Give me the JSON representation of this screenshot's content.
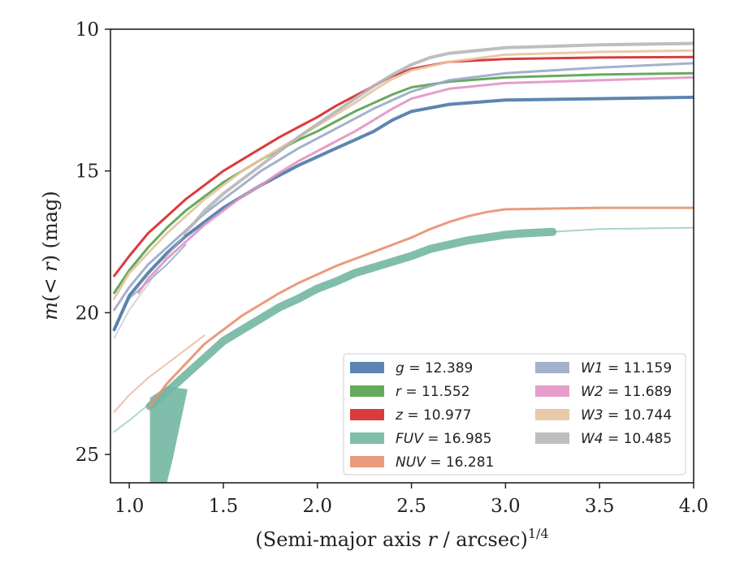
{
  "chart_data": {
    "type": "line",
    "xlabel_main": "(Semi-major axis ",
    "xlabel_var": "r",
    "xlabel_tail": " / arcsec)",
    "xlabel_sup": "1/4",
    "ylabel_main": "m",
    "ylabel_mid": "(< ",
    "ylabel_var": "r",
    "ylabel_tail": ") (mag)",
    "xlim": [
      0.9,
      4.0
    ],
    "ylim": [
      26,
      10
    ],
    "y_inverted": true,
    "grid": false,
    "legend_position": "lower-right",
    "xticks": [
      {
        "v": 1.0,
        "label": "1.0"
      },
      {
        "v": 1.5,
        "label": "1.5"
      },
      {
        "v": 2.0,
        "label": "2.0"
      },
      {
        "v": 2.5,
        "label": "2.5"
      },
      {
        "v": 3.0,
        "label": "3.0"
      },
      {
        "v": 3.5,
        "label": "3.5"
      },
      {
        "v": 4.0,
        "label": "4.0"
      }
    ],
    "yticks": [
      {
        "v": 10,
        "label": "10"
      },
      {
        "v": 15,
        "label": "15"
      },
      {
        "v": 20,
        "label": "20"
      },
      {
        "v": 25,
        "label": "25"
      }
    ],
    "series": [
      {
        "name": "g",
        "value": "12.389",
        "color": "#4c78a8",
        "width": 4,
        "points": [
          [
            0.92,
            20.6
          ],
          [
            1.0,
            19.4
          ],
          [
            1.1,
            18.6
          ],
          [
            1.2,
            17.9
          ],
          [
            1.3,
            17.3
          ],
          [
            1.4,
            16.8
          ],
          [
            1.5,
            16.3
          ],
          [
            1.6,
            15.9
          ],
          [
            1.7,
            15.5
          ],
          [
            1.8,
            15.15
          ],
          [
            1.9,
            14.8
          ],
          [
            2.0,
            14.5
          ],
          [
            2.1,
            14.2
          ],
          [
            2.2,
            13.9
          ],
          [
            2.3,
            13.6
          ],
          [
            2.4,
            13.2
          ],
          [
            2.5,
            12.9
          ],
          [
            2.7,
            12.65
          ],
          [
            3.0,
            12.5
          ],
          [
            3.5,
            12.45
          ],
          [
            4.0,
            12.4
          ]
        ],
        "faint_start": [
          [
            0.92,
            20.6
          ],
          [
            1.0,
            19.5
          ],
          [
            1.1,
            18.9
          ],
          [
            1.2,
            18.3
          ],
          [
            1.3,
            17.6
          ]
        ]
      },
      {
        "name": "r",
        "value": "11.552",
        "color": "#54a24b",
        "width": 3,
        "points": [
          [
            0.92,
            19.3
          ],
          [
            1.0,
            18.5
          ],
          [
            1.1,
            17.7
          ],
          [
            1.2,
            17.0
          ],
          [
            1.3,
            16.4
          ],
          [
            1.4,
            15.9
          ],
          [
            1.5,
            15.4
          ],
          [
            1.6,
            15.0
          ],
          [
            1.7,
            14.6
          ],
          [
            1.8,
            14.25
          ],
          [
            1.9,
            13.9
          ],
          [
            2.0,
            13.6
          ],
          [
            2.1,
            13.25
          ],
          [
            2.2,
            12.9
          ],
          [
            2.3,
            12.6
          ],
          [
            2.4,
            12.3
          ],
          [
            2.5,
            12.05
          ],
          [
            2.7,
            11.85
          ],
          [
            3.0,
            11.7
          ],
          [
            3.5,
            11.6
          ],
          [
            4.0,
            11.55
          ]
        ]
      },
      {
        "name": "z",
        "value": "10.977",
        "color": "#d62728",
        "width": 3,
        "points": [
          [
            0.92,
            18.7
          ],
          [
            1.0,
            18.0
          ],
          [
            1.1,
            17.2
          ],
          [
            1.2,
            16.6
          ],
          [
            1.3,
            16.0
          ],
          [
            1.4,
            15.5
          ],
          [
            1.5,
            15.0
          ],
          [
            1.6,
            14.6
          ],
          [
            1.7,
            14.2
          ],
          [
            1.8,
            13.8
          ],
          [
            1.9,
            13.45
          ],
          [
            2.0,
            13.1
          ],
          [
            2.1,
            12.7
          ],
          [
            2.2,
            12.35
          ],
          [
            2.3,
            12.0
          ],
          [
            2.4,
            11.65
          ],
          [
            2.5,
            11.4
          ],
          [
            2.7,
            11.15
          ],
          [
            3.0,
            11.05
          ],
          [
            3.5,
            11.0
          ],
          [
            4.0,
            10.98
          ]
        ]
      },
      {
        "name": "FUV",
        "value": "16.985",
        "color": "#72b7a2",
        "width": 10,
        "points": [
          [
            1.11,
            23.3
          ],
          [
            1.2,
            22.8
          ],
          [
            1.3,
            22.2
          ],
          [
            1.4,
            21.6
          ],
          [
            1.5,
            21.0
          ],
          [
            1.6,
            20.6
          ],
          [
            1.7,
            20.2
          ],
          [
            1.8,
            19.8
          ],
          [
            1.9,
            19.5
          ],
          [
            2.0,
            19.15
          ],
          [
            2.1,
            18.9
          ],
          [
            2.2,
            18.6
          ],
          [
            2.3,
            18.4
          ],
          [
            2.4,
            18.2
          ],
          [
            2.5,
            18.0
          ],
          [
            2.6,
            17.75
          ],
          [
            2.7,
            17.6
          ],
          [
            2.8,
            17.45
          ],
          [
            2.9,
            17.35
          ],
          [
            3.0,
            17.25
          ],
          [
            3.1,
            17.2
          ],
          [
            3.25,
            17.15
          ]
        ],
        "faint_start": [
          [
            0.92,
            24.2
          ],
          [
            1.0,
            23.8
          ],
          [
            1.11,
            23.2
          ]
        ],
        "faint_end": [
          [
            3.25,
            17.15
          ],
          [
            3.5,
            17.05
          ],
          [
            4.0,
            17.0
          ]
        ],
        "tail": [
          [
            1.11,
            23.0
          ],
          [
            1.2,
            22.6
          ],
          [
            1.31,
            22.7
          ],
          [
            1.23,
            25.2
          ],
          [
            1.2,
            26.0
          ],
          [
            1.11,
            26.0
          ]
        ]
      },
      {
        "name": "NUV",
        "value": "16.281",
        "color": "#e8906f",
        "width": 3,
        "points": [
          [
            1.11,
            23.3
          ],
          [
            1.2,
            22.5
          ],
          [
            1.3,
            21.8
          ],
          [
            1.4,
            21.1
          ],
          [
            1.5,
            20.6
          ],
          [
            1.6,
            20.1
          ],
          [
            1.7,
            19.7
          ],
          [
            1.8,
            19.3
          ],
          [
            1.9,
            18.95
          ],
          [
            2.0,
            18.65
          ],
          [
            2.1,
            18.35
          ],
          [
            2.2,
            18.1
          ],
          [
            2.3,
            17.85
          ],
          [
            2.4,
            17.6
          ],
          [
            2.5,
            17.35
          ],
          [
            2.6,
            17.05
          ],
          [
            2.7,
            16.8
          ],
          [
            2.8,
            16.6
          ],
          [
            2.9,
            16.45
          ],
          [
            3.0,
            16.35
          ],
          [
            3.5,
            16.3
          ],
          [
            4.0,
            16.3
          ]
        ],
        "faint_start": [
          [
            0.92,
            23.5
          ],
          [
            1.0,
            22.9
          ],
          [
            1.1,
            22.3
          ],
          [
            1.2,
            21.8
          ],
          [
            1.3,
            21.3
          ],
          [
            1.4,
            20.8
          ]
        ]
      },
      {
        "name": "W1",
        "value": "11.159",
        "color": "#9aa8c8",
        "width": 3,
        "points": [
          [
            0.92,
            19.9
          ],
          [
            1.0,
            19.1
          ],
          [
            1.1,
            18.3
          ],
          [
            1.2,
            17.7
          ],
          [
            1.3,
            17.1
          ],
          [
            1.4,
            16.5
          ],
          [
            1.5,
            16.0
          ],
          [
            1.6,
            15.5
          ],
          [
            1.7,
            15.0
          ],
          [
            1.8,
            14.6
          ],
          [
            1.9,
            14.2
          ],
          [
            2.0,
            13.85
          ],
          [
            2.1,
            13.5
          ],
          [
            2.2,
            13.15
          ],
          [
            2.3,
            12.8
          ],
          [
            2.4,
            12.5
          ],
          [
            2.5,
            12.2
          ],
          [
            2.7,
            11.8
          ],
          [
            3.0,
            11.55
          ],
          [
            3.5,
            11.35
          ],
          [
            4.0,
            11.2
          ]
        ]
      },
      {
        "name": "W2",
        "value": "11.689",
        "color": "#e294c4",
        "width": 3,
        "points": [
          [
            1.05,
            19.3
          ],
          [
            1.1,
            18.8
          ],
          [
            1.2,
            18.1
          ],
          [
            1.3,
            17.5
          ],
          [
            1.4,
            16.9
          ],
          [
            1.5,
            16.4
          ],
          [
            1.6,
            15.9
          ],
          [
            1.7,
            15.5
          ],
          [
            1.8,
            15.05
          ],
          [
            1.9,
            14.65
          ],
          [
            2.0,
            14.3
          ],
          [
            2.1,
            13.95
          ],
          [
            2.2,
            13.6
          ],
          [
            2.3,
            13.2
          ],
          [
            2.4,
            12.8
          ],
          [
            2.5,
            12.45
          ],
          [
            2.7,
            12.1
          ],
          [
            3.0,
            11.9
          ],
          [
            3.5,
            11.8
          ],
          [
            4.0,
            11.7
          ]
        ]
      },
      {
        "name": "W3",
        "value": "10.744",
        "color": "#e5c49f",
        "width": 3,
        "points": [
          [
            0.92,
            19.5
          ],
          [
            1.0,
            18.6
          ],
          [
            1.1,
            17.9
          ],
          [
            1.2,
            17.2
          ],
          [
            1.3,
            16.6
          ],
          [
            1.4,
            16.0
          ],
          [
            1.5,
            15.5
          ],
          [
            1.6,
            15.0
          ],
          [
            1.7,
            14.6
          ],
          [
            1.8,
            14.2
          ],
          [
            1.9,
            13.8
          ],
          [
            2.0,
            13.4
          ],
          [
            2.1,
            13.0
          ],
          [
            2.2,
            12.6
          ],
          [
            2.3,
            12.15
          ],
          [
            2.4,
            11.75
          ],
          [
            2.5,
            11.45
          ],
          [
            2.7,
            11.15
          ],
          [
            3.0,
            10.9
          ],
          [
            3.5,
            10.8
          ],
          [
            4.0,
            10.75
          ]
        ]
      },
      {
        "name": "W4",
        "value": "10.485",
        "color": "#b7b7b7",
        "width": 4,
        "points": [
          [
            1.29,
            17.2
          ],
          [
            1.35,
            16.8
          ],
          [
            1.4,
            16.4
          ],
          [
            1.5,
            15.8
          ],
          [
            1.6,
            15.3
          ],
          [
            1.7,
            14.8
          ],
          [
            1.8,
            14.3
          ],
          [
            1.9,
            13.8
          ],
          [
            2.0,
            13.35
          ],
          [
            2.1,
            12.9
          ],
          [
            2.2,
            12.45
          ],
          [
            2.3,
            12.0
          ],
          [
            2.4,
            11.6
          ],
          [
            2.5,
            11.25
          ],
          [
            2.6,
            11.0
          ],
          [
            2.7,
            10.85
          ],
          [
            3.0,
            10.65
          ],
          [
            3.5,
            10.55
          ],
          [
            4.0,
            10.5
          ]
        ],
        "faint_start": [
          [
            0.92,
            20.9
          ],
          [
            1.0,
            19.9
          ],
          [
            1.1,
            19.0
          ],
          [
            1.2,
            18.0
          ],
          [
            1.29,
            17.3
          ]
        ]
      }
    ]
  }
}
